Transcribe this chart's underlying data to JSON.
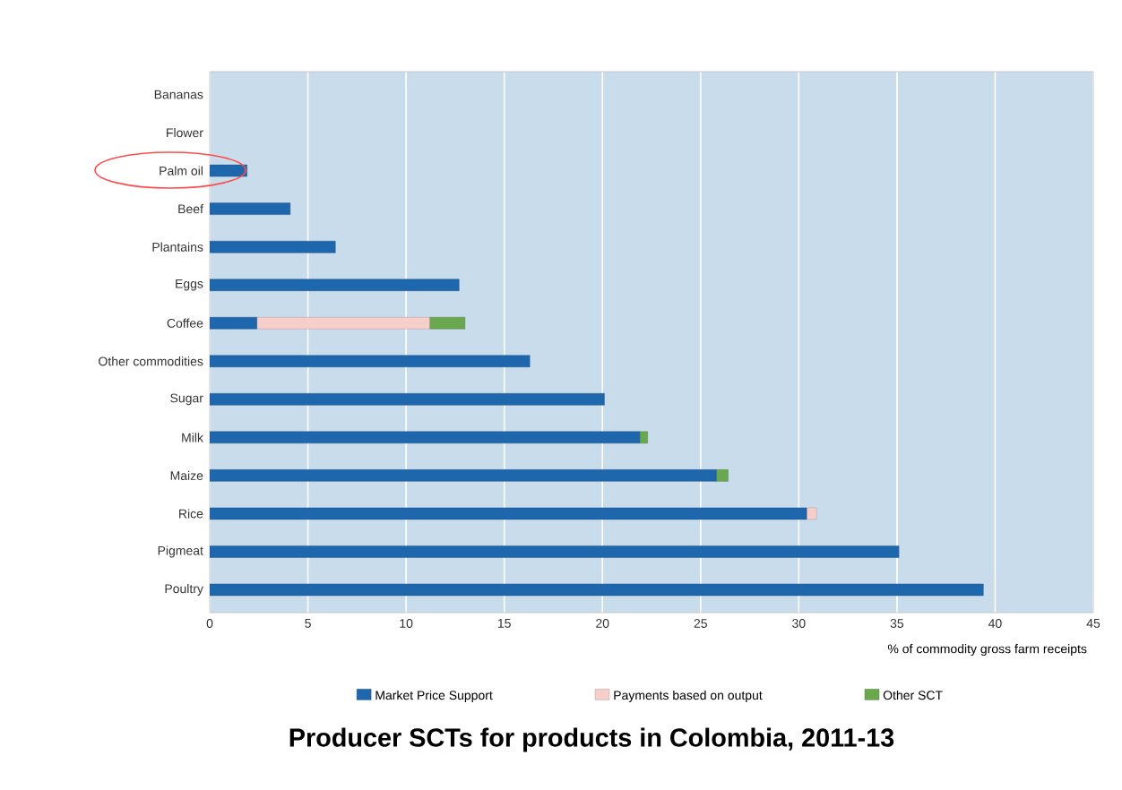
{
  "chart_data": {
    "type": "bar",
    "orientation": "horizontal",
    "stacked": true,
    "title": "Producer SCTs for products in Colombia, 2011-13",
    "xlabel": "% of commodity gross farm receipts",
    "categories": [
      "Bananas",
      "Flower",
      "Palm oil",
      "Beef",
      "Plantains",
      "Eggs",
      "Coffee",
      "Other commodities",
      "Sugar",
      "Milk",
      "Maize",
      "Rice",
      "Pigmeat",
      "Poultry"
    ],
    "series": [
      {
        "name": "Market Price Support",
        "color": "#1f67ad",
        "values": [
          0,
          0,
          1.9,
          4.1,
          6.4,
          12.7,
          2.4,
          16.3,
          20.1,
          21.9,
          25.8,
          30.4,
          35.1,
          39.4
        ]
      },
      {
        "name": "Payments based on output",
        "color": "#f6cfca",
        "values": [
          0,
          0,
          0,
          0,
          0,
          0,
          8.8,
          0,
          0,
          0,
          0,
          0.5,
          0,
          0
        ]
      },
      {
        "name": "Other SCT",
        "color": "#6aa84f",
        "values": [
          0,
          0,
          0,
          0,
          0,
          0,
          1.8,
          0,
          0,
          0.4,
          0.6,
          0,
          0,
          0
        ]
      }
    ],
    "xlim": [
      0,
      45
    ],
    "xticks": [
      0,
      5,
      10,
      15,
      20,
      25,
      30,
      35,
      40,
      45
    ],
    "grid": "x",
    "legend": "bottom"
  }
}
